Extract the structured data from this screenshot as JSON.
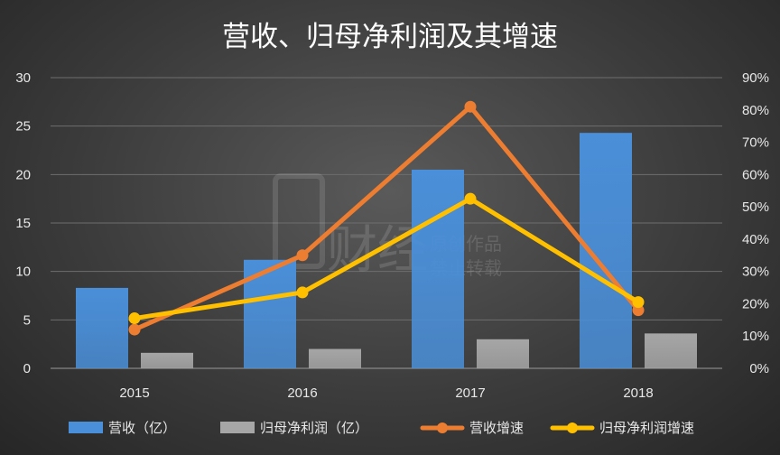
{
  "chart_data": {
    "type": "bar",
    "title": "营收、归母净利润及其增速",
    "categories": [
      "2015",
      "2016",
      "2017",
      "2018"
    ],
    "y_left": {
      "ticks": [
        "0",
        "5",
        "10",
        "15",
        "20",
        "25",
        "30"
      ],
      "lim": [
        0,
        30
      ]
    },
    "y_right": {
      "ticks": [
        "0%",
        "10%",
        "20%",
        "30%",
        "40%",
        "50%",
        "60%",
        "70%",
        "80%",
        "90%"
      ],
      "lim": [
        0,
        0.9
      ]
    },
    "grid": true,
    "legend_position": "bottom",
    "bar_series": [
      {
        "name": "营收（亿）",
        "values": [
          8.3,
          11.2,
          20.5,
          24.3
        ],
        "color": "#4a8fd9"
      },
      {
        "name": "归母净利润（亿）",
        "values": [
          1.6,
          2.0,
          3.0,
          3.6
        ],
        "color": "#a6a6a6"
      }
    ],
    "line_series": [
      {
        "name": "营收增速",
        "values": [
          0.12,
          0.35,
          0.81,
          0.18
        ],
        "color": "#ed7d31"
      },
      {
        "name": "归母净利润增速",
        "values": [
          0.155,
          0.235,
          0.525,
          0.205
        ],
        "color": "#ffc000"
      }
    ]
  },
  "watermark": {
    "line1": "原创作品",
    "line2": "禁止转载",
    "brand": "财经"
  }
}
